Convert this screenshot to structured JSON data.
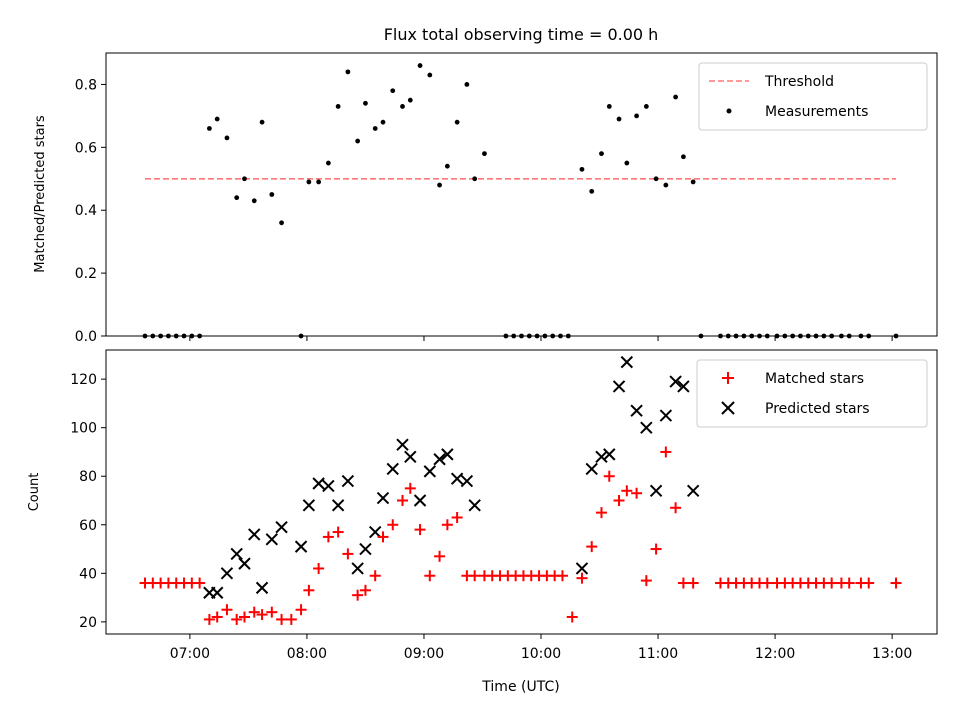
{
  "title": "Flux total observing time = 0.00 h",
  "chart_data": [
    {
      "type": "scatter",
      "title": "Flux total observing time = 0.00 h",
      "xlabel": "",
      "ylabel": "Matched/Predicted stars",
      "xlim": [
        "06:17",
        "13:23"
      ],
      "ylim": [
        0,
        0.9
      ],
      "yticks": [
        "0.0",
        "0.2",
        "0.4",
        "0.6",
        "0.8"
      ],
      "legend_position": "top-right",
      "threshold": {
        "name": "Threshold",
        "value": 0.5,
        "x_range": [
          "06:37",
          "13:02"
        ],
        "color": "#ff7777",
        "style": "dashed"
      },
      "series": [
        {
          "name": "Measurements",
          "color": "#000000",
          "marker": "dot",
          "points": [
            [
              "06:37",
              0.0
            ],
            [
              "06:41",
              0.0
            ],
            [
              "06:45",
              0.0
            ],
            [
              "06:49",
              0.0
            ],
            [
              "06:53",
              0.0
            ],
            [
              "06:57",
              0.0
            ],
            [
              "07:01",
              0.0
            ],
            [
              "07:05",
              0.0
            ],
            [
              "07:10",
              0.66
            ],
            [
              "07:14",
              0.69
            ],
            [
              "07:19",
              0.63
            ],
            [
              "07:24",
              0.44
            ],
            [
              "07:28",
              0.5
            ],
            [
              "07:33",
              0.43
            ],
            [
              "07:37",
              0.68
            ],
            [
              "07:42",
              0.45
            ],
            [
              "07:47",
              0.36
            ],
            [
              "07:57",
              0.0
            ],
            [
              "08:01",
              0.49
            ],
            [
              "08:06",
              0.49
            ],
            [
              "08:11",
              0.55
            ],
            [
              "08:16",
              0.73
            ],
            [
              "08:21",
              0.84
            ],
            [
              "08:26",
              0.62
            ],
            [
              "08:30",
              0.74
            ],
            [
              "08:35",
              0.66
            ],
            [
              "08:39",
              0.68
            ],
            [
              "08:44",
              0.78
            ],
            [
              "08:49",
              0.73
            ],
            [
              "08:53",
              0.75
            ],
            [
              "08:58",
              0.86
            ],
            [
              "09:03",
              0.83
            ],
            [
              "09:08",
              0.48
            ],
            [
              "09:12",
              0.54
            ],
            [
              "09:17",
              0.68
            ],
            [
              "09:22",
              0.8
            ],
            [
              "09:26",
              0.5
            ],
            [
              "09:31",
              0.58
            ],
            [
              "09:42",
              0.0
            ],
            [
              "09:46",
              0.0
            ],
            [
              "09:50",
              0.0
            ],
            [
              "09:54",
              0.0
            ],
            [
              "09:58",
              0.0
            ],
            [
              "10:02",
              0.0
            ],
            [
              "10:06",
              0.0
            ],
            [
              "10:10",
              0.0
            ],
            [
              "10:14",
              0.0
            ],
            [
              "10:21",
              0.53
            ],
            [
              "10:26",
              0.46
            ],
            [
              "10:31",
              0.58
            ],
            [
              "10:35",
              0.73
            ],
            [
              "10:40",
              0.69
            ],
            [
              "10:44",
              0.55
            ],
            [
              "10:49",
              0.7
            ],
            [
              "10:54",
              0.73
            ],
            [
              "10:59",
              0.5
            ],
            [
              "11:04",
              0.48
            ],
            [
              "11:09",
              0.76
            ],
            [
              "11:13",
              0.57
            ],
            [
              "11:18",
              0.49
            ],
            [
              "11:22",
              0.0
            ],
            [
              "11:32",
              0.0
            ],
            [
              "11:36",
              0.0
            ],
            [
              "11:40",
              0.0
            ],
            [
              "11:44",
              0.0
            ],
            [
              "11:48",
              0.0
            ],
            [
              "11:52",
              0.0
            ],
            [
              "11:56",
              0.0
            ],
            [
              "12:01",
              0.0
            ],
            [
              "12:05",
              0.0
            ],
            [
              "12:09",
              0.0
            ],
            [
              "12:13",
              0.0
            ],
            [
              "12:17",
              0.0
            ],
            [
              "12:21",
              0.0
            ],
            [
              "12:25",
              0.0
            ],
            [
              "12:29",
              0.0
            ],
            [
              "12:34",
              0.0
            ],
            [
              "12:38",
              0.0
            ],
            [
              "12:44",
              0.0
            ],
            [
              "12:48",
              0.0
            ],
            [
              "13:02",
              0.0
            ]
          ]
        }
      ]
    },
    {
      "type": "scatter",
      "title": "",
      "xlabel": "Time (UTC)",
      "ylabel": "Count",
      "xlim": [
        "06:17",
        "13:23"
      ],
      "ylim": [
        15,
        132
      ],
      "xticks": [
        "07:00",
        "08:00",
        "09:00",
        "10:00",
        "11:00",
        "12:00",
        "13:00"
      ],
      "yticks": [
        "20",
        "40",
        "60",
        "80",
        "100",
        "120"
      ],
      "legend_position": "top-right",
      "series": [
        {
          "name": "Matched stars",
          "color": "#ff0000",
          "marker": "plus",
          "points": [
            [
              "06:37",
              36
            ],
            [
              "06:41",
              36
            ],
            [
              "06:45",
              36
            ],
            [
              "06:49",
              36
            ],
            [
              "06:53",
              36
            ],
            [
              "06:57",
              36
            ],
            [
              "07:01",
              36
            ],
            [
              "07:05",
              36
            ],
            [
              "07:10",
              21
            ],
            [
              "07:14",
              22
            ],
            [
              "07:19",
              25
            ],
            [
              "07:24",
              21
            ],
            [
              "07:28",
              22
            ],
            [
              "07:33",
              24
            ],
            [
              "07:37",
              23
            ],
            [
              "07:42",
              24
            ],
            [
              "07:47",
              21
            ],
            [
              "07:52",
              21
            ],
            [
              "07:57",
              25
            ],
            [
              "08:01",
              33
            ],
            [
              "08:06",
              42
            ],
            [
              "08:11",
              55
            ],
            [
              "08:16",
              57
            ],
            [
              "08:21",
              48
            ],
            [
              "08:26",
              31
            ],
            [
              "08:30",
              33
            ],
            [
              "08:35",
              39
            ],
            [
              "08:39",
              55
            ],
            [
              "08:44",
              60
            ],
            [
              "08:49",
              70
            ],
            [
              "08:53",
              75
            ],
            [
              "08:58",
              58
            ],
            [
              "09:03",
              39
            ],
            [
              "09:08",
              47
            ],
            [
              "09:12",
              60
            ],
            [
              "09:17",
              63
            ],
            [
              "09:22",
              39
            ],
            [
              "09:26",
              39
            ],
            [
              "09:31",
              39
            ],
            [
              "09:35",
              39
            ],
            [
              "09:39",
              39
            ],
            [
              "09:43",
              39
            ],
            [
              "09:47",
              39
            ],
            [
              "09:51",
              39
            ],
            [
              "09:55",
              39
            ],
            [
              "09:59",
              39
            ],
            [
              "10:03",
              39
            ],
            [
              "10:07",
              39
            ],
            [
              "10:11",
              39
            ],
            [
              "10:16",
              22
            ],
            [
              "10:21",
              38
            ],
            [
              "10:26",
              51
            ],
            [
              "10:31",
              65
            ],
            [
              "10:35",
              80
            ],
            [
              "10:40",
              70
            ],
            [
              "10:44",
              74
            ],
            [
              "10:49",
              73
            ],
            [
              "10:54",
              37
            ],
            [
              "10:59",
              50
            ],
            [
              "11:04",
              90
            ],
            [
              "11:09",
              67
            ],
            [
              "11:13",
              36
            ],
            [
              "11:18",
              36
            ],
            [
              "11:32",
              36
            ],
            [
              "11:36",
              36
            ],
            [
              "11:40",
              36
            ],
            [
              "11:44",
              36
            ],
            [
              "11:48",
              36
            ],
            [
              "11:52",
              36
            ],
            [
              "11:56",
              36
            ],
            [
              "12:01",
              36
            ],
            [
              "12:05",
              36
            ],
            [
              "12:09",
              36
            ],
            [
              "12:13",
              36
            ],
            [
              "12:17",
              36
            ],
            [
              "12:21",
              36
            ],
            [
              "12:25",
              36
            ],
            [
              "12:29",
              36
            ],
            [
              "12:34",
              36
            ],
            [
              "12:38",
              36
            ],
            [
              "12:44",
              36
            ],
            [
              "12:48",
              36
            ],
            [
              "13:02",
              36
            ]
          ]
        },
        {
          "name": "Predicted stars",
          "color": "#000000",
          "marker": "x",
          "points": [
            [
              "07:10",
              32
            ],
            [
              "07:14",
              32
            ],
            [
              "07:19",
              40
            ],
            [
              "07:24",
              48
            ],
            [
              "07:28",
              44
            ],
            [
              "07:33",
              56
            ],
            [
              "07:37",
              34
            ],
            [
              "07:42",
              54
            ],
            [
              "07:47",
              59
            ],
            [
              "07:57",
              51
            ],
            [
              "08:01",
              68
            ],
            [
              "08:06",
              77
            ],
            [
              "08:11",
              76
            ],
            [
              "08:16",
              68
            ],
            [
              "08:21",
              78
            ],
            [
              "08:26",
              42
            ],
            [
              "08:30",
              50
            ],
            [
              "08:35",
              57
            ],
            [
              "08:39",
              71
            ],
            [
              "08:44",
              83
            ],
            [
              "08:49",
              93
            ],
            [
              "08:53",
              88
            ],
            [
              "08:58",
              70
            ],
            [
              "09:03",
              82
            ],
            [
              "09:08",
              87
            ],
            [
              "09:12",
              89
            ],
            [
              "09:17",
              79
            ],
            [
              "09:22",
              78
            ],
            [
              "09:26",
              68
            ],
            [
              "10:21",
              42
            ],
            [
              "10:26",
              83
            ],
            [
              "10:31",
              88
            ],
            [
              "10:35",
              89
            ],
            [
              "10:40",
              117
            ],
            [
              "10:44",
              127
            ],
            [
              "10:49",
              107
            ],
            [
              "10:54",
              100
            ],
            [
              "10:59",
              74
            ],
            [
              "11:04",
              105
            ],
            [
              "11:09",
              119
            ],
            [
              "11:13",
              117
            ],
            [
              "11:18",
              74
            ]
          ]
        }
      ]
    }
  ]
}
